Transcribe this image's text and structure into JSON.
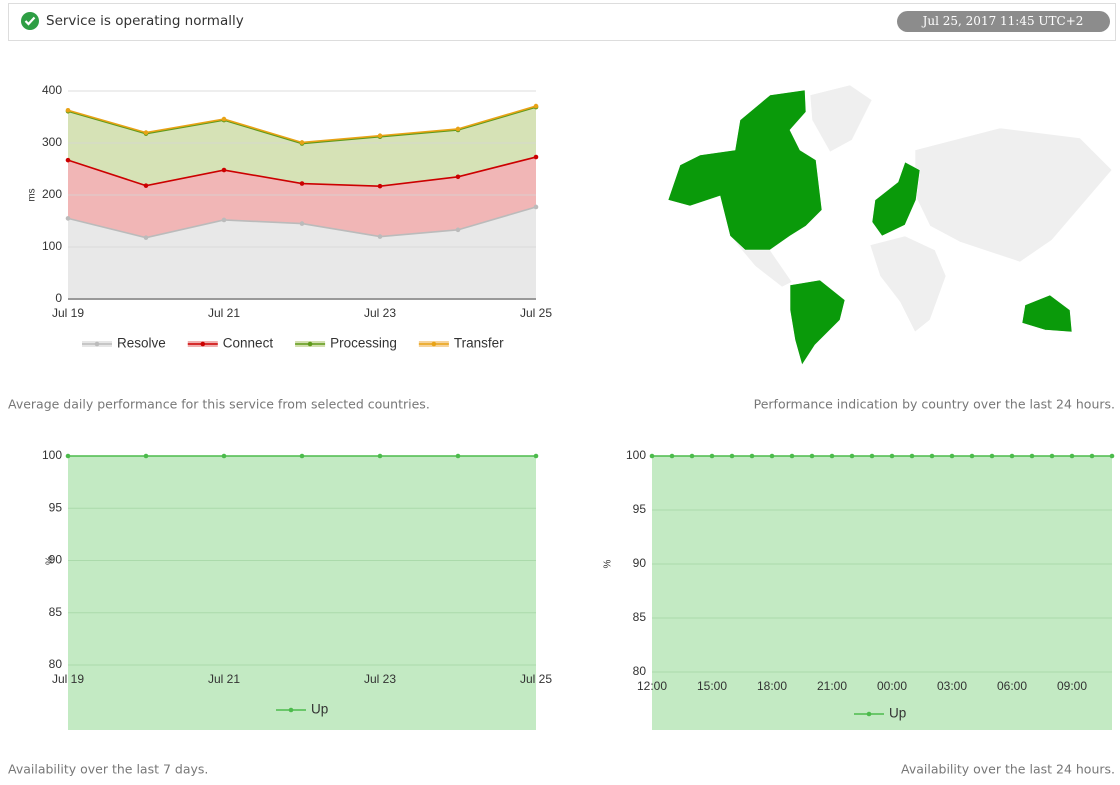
{
  "header": {
    "status": "Service is operating normally",
    "timestamp": "Jul 25, 2017 11:45 UTC+2"
  },
  "chart_data": [
    {
      "type": "area",
      "stacked": true,
      "ylabel": "ms",
      "categories": [
        "Jul 19",
        null,
        "Jul 21",
        null,
        "Jul 23",
        null,
        "Jul 25"
      ],
      "series": [
        {
          "name": "Resolve",
          "color": "#bbbbbb",
          "fill": "#e6e6e6",
          "values": [
            155,
            118,
            152,
            145,
            120,
            133,
            177
          ]
        },
        {
          "name": "Connect",
          "color": "#cc0000",
          "fill": "#f0aeae",
          "values": [
            112,
            100,
            96,
            77,
            97,
            102,
            96
          ]
        },
        {
          "name": "Processing",
          "color": "#5f9a1a",
          "fill": "#d2dfae",
          "values": [
            94,
            100,
            96,
            77,
            95,
            90,
            96
          ]
        },
        {
          "name": "Transfer",
          "color": "#e8a317",
          "fill": "#f6d39a",
          "values": [
            2,
            2,
            2,
            2,
            2,
            2,
            2
          ]
        }
      ],
      "ylim": [
        0,
        400
      ],
      "yticks": [
        0,
        100,
        200,
        300,
        400
      ],
      "grid": true,
      "legend": "bottom"
    },
    {
      "type": "area",
      "ylabel": "%",
      "categories": [
        "Jul 19",
        null,
        "Jul 21",
        null,
        "Jul 23",
        null,
        "Jul 25"
      ],
      "series": [
        {
          "name": "Up",
          "color": "#4cbb4c",
          "fill": "#c3eac3",
          "values": [
            100,
            100,
            100,
            100,
            100,
            100,
            100
          ]
        }
      ],
      "ylim": [
        80,
        100
      ],
      "yticks": [
        80,
        85,
        90,
        95,
        100
      ],
      "grid": true,
      "legend": "bottom"
    },
    {
      "type": "area",
      "ylabel": "%",
      "categories": [
        "12:00",
        null,
        null,
        "15:00",
        null,
        null,
        "18:00",
        null,
        null,
        "21:00",
        null,
        null,
        "00:00",
        null,
        null,
        "03:00",
        null,
        null,
        "06:00",
        null,
        null,
        "09:00",
        null,
        null
      ],
      "series": [
        {
          "name": "Up",
          "color": "#4cbb4c",
          "fill": "#c3eac3",
          "values": [
            100,
            100,
            100,
            100,
            100,
            100,
            100,
            100,
            100,
            100,
            100,
            100,
            100,
            100,
            100,
            100,
            100,
            100,
            100,
            100,
            100,
            100,
            100,
            100
          ]
        }
      ],
      "ylim": [
        80,
        100
      ],
      "yticks": [
        80,
        85,
        90,
        95,
        100
      ],
      "grid": true,
      "legend": "bottom"
    }
  ],
  "captions": {
    "performance": "Average daily performance for this service from selected countries.",
    "map": "Performance indication by country over the last 24 hours.",
    "availability_7d": "Availability over the last 7 days.",
    "availability_24h": "Availability over the last 24 hours."
  }
}
